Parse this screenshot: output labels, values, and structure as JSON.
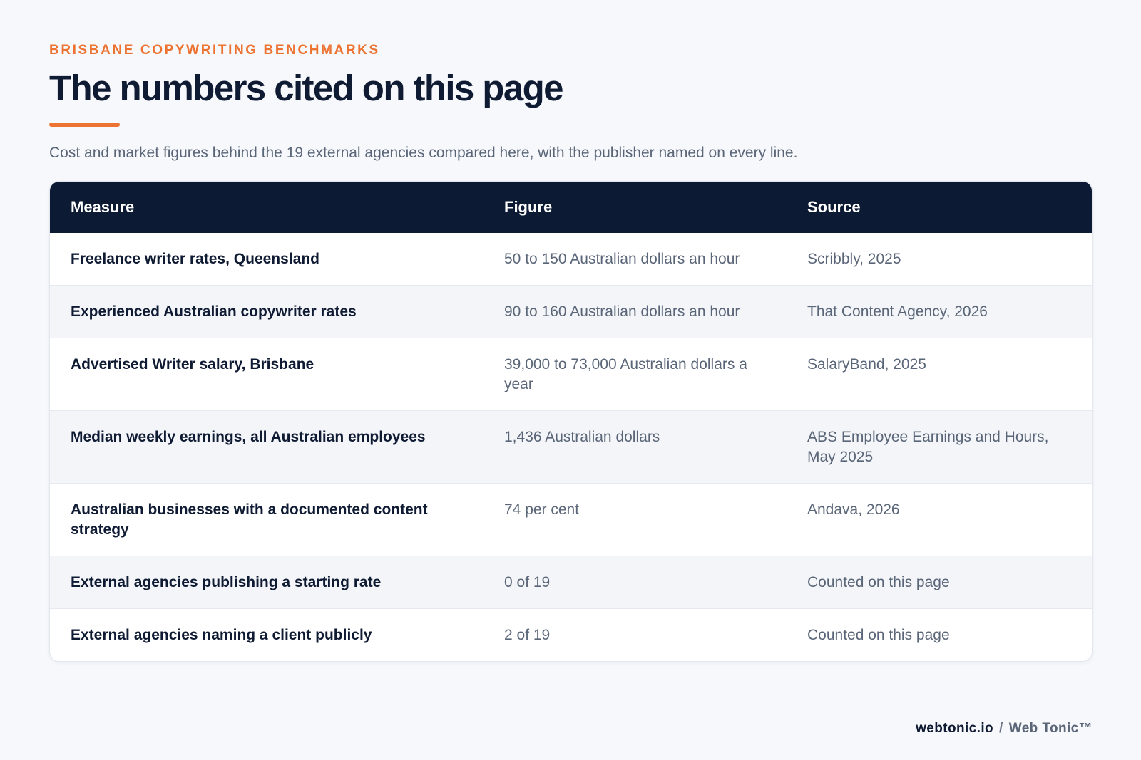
{
  "header": {
    "eyebrow": "BRISBANE COPYWRITING BENCHMARKS",
    "title": "The numbers cited on this page",
    "subtitle": "Cost and market figures behind the 19 external agencies compared here, with the publisher named on every line."
  },
  "table": {
    "columns": [
      "Measure",
      "Figure",
      "Source"
    ],
    "rows": [
      {
        "measure": "Freelance writer rates, Queensland",
        "figure": "50 to 150 Australian dollars an hour",
        "source": "Scribbly, 2025"
      },
      {
        "measure": "Experienced Australian copywriter rates",
        "figure": "90 to 160 Australian dollars an hour",
        "source": "That Content Agency, 2026"
      },
      {
        "measure": "Advertised Writer salary, Brisbane",
        "figure": "39,000 to 73,000 Australian dollars a year",
        "source": "SalaryBand, 2025"
      },
      {
        "measure": "Median weekly earnings, all Australian employees",
        "figure": "1,436 Australian dollars",
        "source": "ABS Employee Earnings and Hours, May 2025"
      },
      {
        "measure": "Australian businesses with a documented content strategy",
        "figure": "74 per cent",
        "source": "Andava, 2026"
      },
      {
        "measure": "External agencies publishing a starting rate",
        "figure": "0 of 19",
        "source": "Counted on this page"
      },
      {
        "measure": "External agencies naming a client publicly",
        "figure": "2 of 19",
        "source": "Counted on this page"
      }
    ]
  },
  "footer": {
    "domain": "webtonic.io",
    "separator": "/",
    "brand": "Web Tonic™"
  },
  "colors": {
    "accent": "#ec7332",
    "header_bg": "#0d1a33",
    "page_bg": "#f6f8fb"
  }
}
